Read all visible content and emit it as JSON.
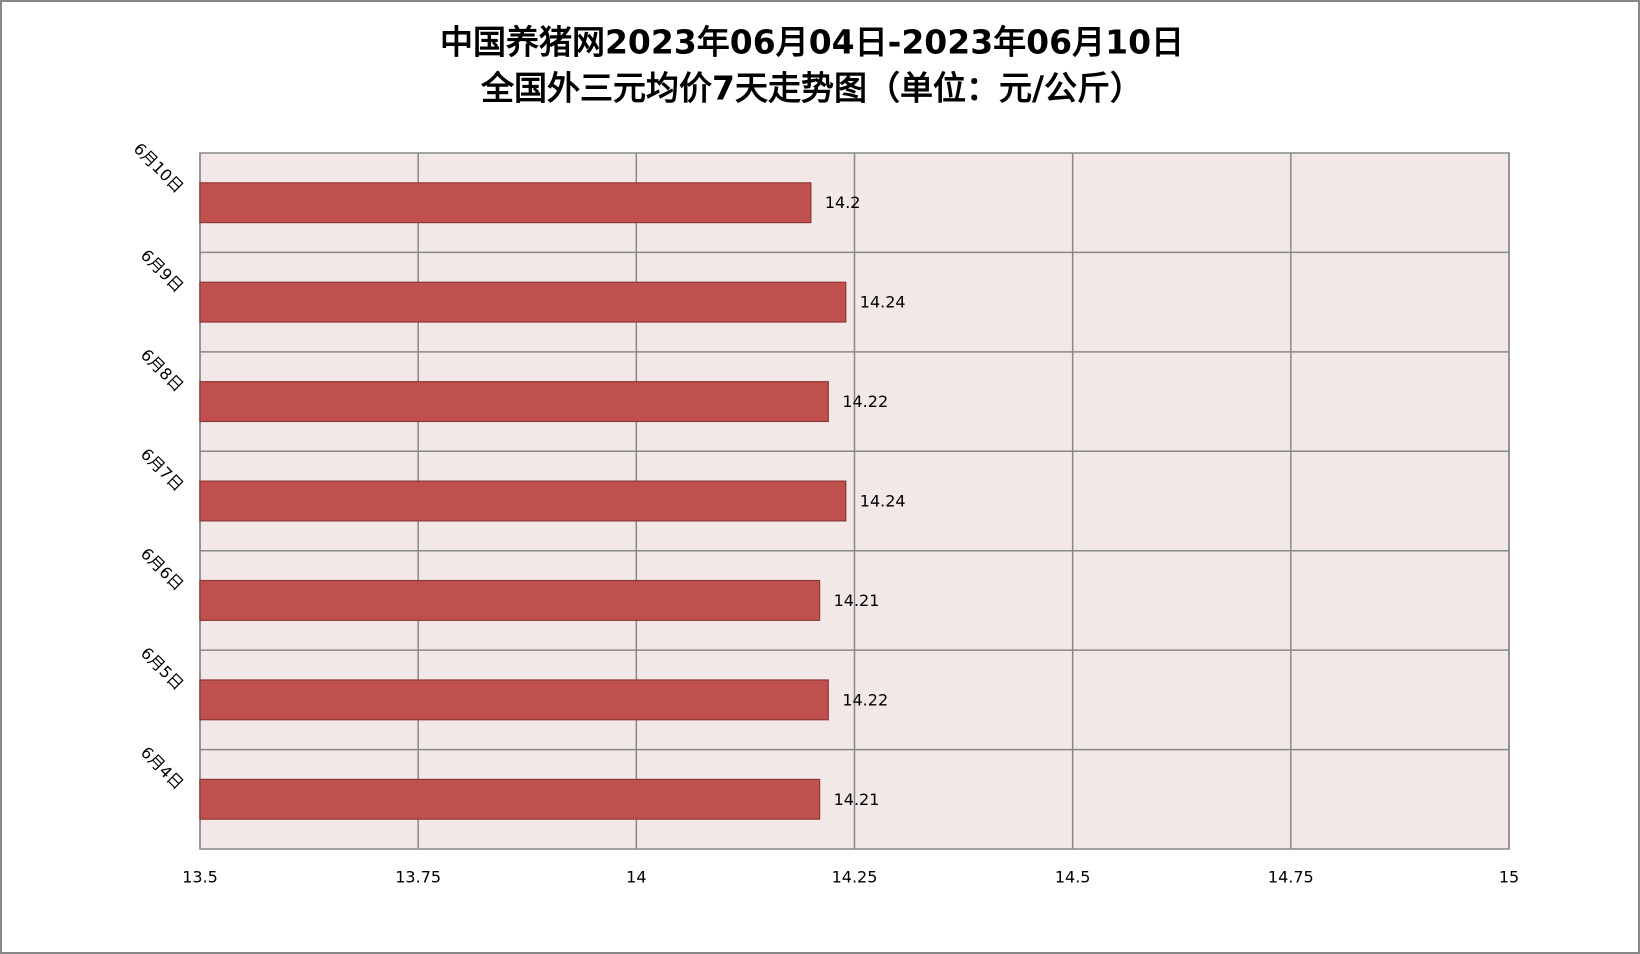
{
  "chart_data": {
    "type": "bar",
    "orientation": "horizontal",
    "title": [
      "中国养猪网2023年06月04日-2023年06月10日",
      "全国外三元均价7天走势图（单位：元/公斤）"
    ],
    "categories": [
      "6月4日",
      "6月5日",
      "6月6日",
      "6月7日",
      "6月8日",
      "6月9日",
      "6月10日"
    ],
    "values": [
      14.21,
      14.22,
      14.21,
      14.24,
      14.22,
      14.24,
      14.2
    ],
    "color": "#c0504d",
    "xlim": [
      13.5,
      15
    ],
    "xticks": [
      13.5,
      13.75,
      14,
      14.25,
      14.5,
      14.75,
      15
    ],
    "grid": true
  }
}
